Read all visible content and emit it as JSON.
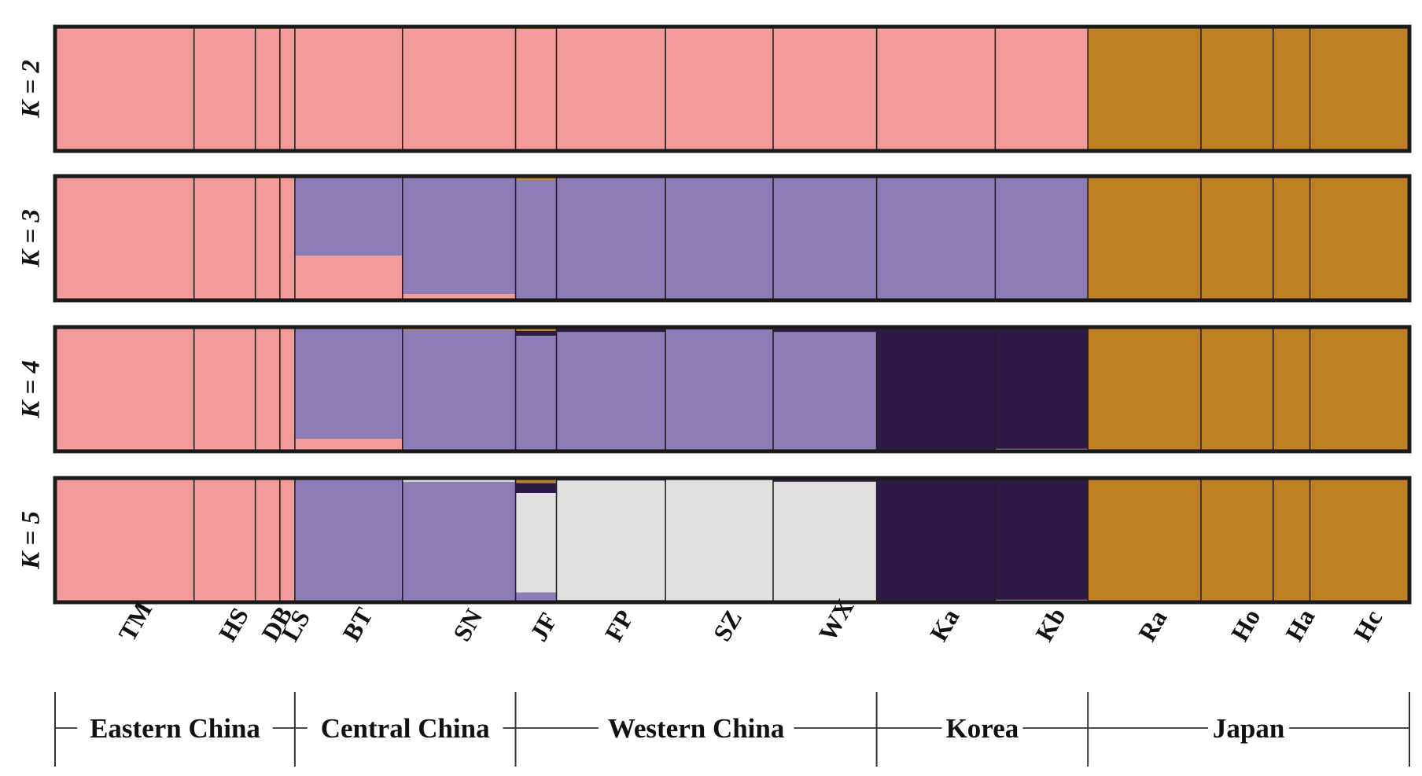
{
  "chart_data": {
    "type": "bar",
    "subtype": "stacked-100-percent admixture plot (STRUCTURE)",
    "y_range": [
      0,
      1
    ],
    "colors": {
      "pink": "#F29B9A",
      "gold": "#BF8024",
      "lavender": "#8D7CB5",
      "dark_purple": "#2F1A47",
      "light_gray": "#E1E0DF"
    },
    "populations": [
      {
        "code": "TM",
        "share": 0.102
      },
      {
        "code": "HS",
        "share": 0.045
      },
      {
        "code": "DB",
        "share": 0.018
      },
      {
        "code": "LS",
        "share": 0.011
      },
      {
        "code": "BT",
        "share": 0.079
      },
      {
        "code": "SN",
        "share": 0.083
      },
      {
        "code": "JF",
        "share": 0.03
      },
      {
        "code": "FP",
        "share": 0.08
      },
      {
        "code": "SZ",
        "share": 0.079
      },
      {
        "code": "WX",
        "share": 0.076
      },
      {
        "code": "Ka",
        "share": 0.087
      },
      {
        "code": "Kb",
        "share": 0.068
      },
      {
        "code": "Ra",
        "share": 0.083
      },
      {
        "code": "Ho",
        "share": 0.053
      },
      {
        "code": "Ha",
        "share": 0.027
      },
      {
        "code": "Hc",
        "share": 0.073
      }
    ],
    "panels": [
      {
        "k_label": "K = 2",
        "components": {
          "TM": {
            "pink": 0.99,
            "gold": 0.01
          },
          "HS": {
            "pink": 0.99,
            "gold": 0.01
          },
          "DB": {
            "pink": 0.98,
            "gold": 0.02
          },
          "LS": {
            "pink": 1.0
          },
          "BT": {
            "pink": 1.0
          },
          "SN": {
            "pink": 0.99,
            "gold": 0.01
          },
          "JF": {
            "pink": 0.98,
            "gold": 0.02
          },
          "FP": {
            "pink": 0.99,
            "gold": 0.01
          },
          "SZ": {
            "pink": 1.0
          },
          "WX": {
            "pink": 1.0
          },
          "Ka": {
            "pink": 1.0
          },
          "Kb": {
            "pink": 1.0
          },
          "Ra": {
            "gold": 1.0
          },
          "Ho": {
            "gold": 0.99,
            "pink": 0.01
          },
          "Ha": {
            "gold": 1.0
          },
          "Hc": {
            "gold": 1.0
          }
        }
      },
      {
        "k_label": "K = 3",
        "components": {
          "TM": {
            "pink": 0.99,
            "gold": 0.01
          },
          "HS": {
            "pink": 0.99,
            "gold": 0.01
          },
          "DB": {
            "pink": 0.98,
            "gold": 0.02
          },
          "LS": {
            "pink": 1.0
          },
          "BT": {
            "pink": 0.36,
            "lavender": 0.64
          },
          "SN": {
            "pink": 0.05,
            "lavender": 0.95
          },
          "JF": {
            "lavender": 0.97,
            "gold": 0.03
          },
          "FP": {
            "lavender": 0.99,
            "gold": 0.01
          },
          "SZ": {
            "lavender": 1.0
          },
          "WX": {
            "lavender": 1.0
          },
          "Ka": {
            "lavender": 1.0
          },
          "Kb": {
            "lavender": 1.0
          },
          "Ra": {
            "gold": 1.0
          },
          "Ho": {
            "gold": 0.99,
            "lavender": 0.01
          },
          "Ha": {
            "gold": 1.0
          },
          "Hc": {
            "gold": 1.0
          }
        }
      },
      {
        "k_label": "K = 4",
        "components": {
          "TM": {
            "pink": 1.0
          },
          "HS": {
            "pink": 1.0
          },
          "DB": {
            "pink": 1.0
          },
          "LS": {
            "pink": 1.0
          },
          "BT": {
            "lavender": 0.9,
            "pink": 0.1
          },
          "SN": {
            "lavender": 0.98,
            "gold": 0.02
          },
          "JF": {
            "lavender": 0.93,
            "dark_purple": 0.04,
            "gold": 0.03
          },
          "FP": {
            "lavender": 0.96,
            "dark_purple": 0.03,
            "gold": 0.01
          },
          "SZ": {
            "lavender": 0.98,
            "dark_purple": 0.02
          },
          "WX": {
            "lavender": 0.96,
            "dark_purple": 0.04
          },
          "Ka": {
            "dark_purple": 1.0
          },
          "Kb": {
            "dark_purple": 0.97,
            "pink": 0.02,
            "gold": 0.01
          },
          "Ra": {
            "gold": 1.0
          },
          "Ho": {
            "gold": 0.99,
            "lavender": 0.01
          },
          "Ha": {
            "gold": 1.0
          },
          "Hc": {
            "gold": 1.0
          }
        }
      },
      {
        "k_label": "K = 5",
        "components": {
          "TM": {
            "pink": 1.0
          },
          "HS": {
            "pink": 1.0
          },
          "DB": {
            "pink": 1.0
          },
          "LS": {
            "pink": 1.0
          },
          "BT": {
            "lavender": 1.0
          },
          "SN": {
            "lavender": 0.97,
            "light_gray": 0.02,
            "dark_purple": 0.01
          },
          "JF": {
            "light_gray": 0.8,
            "dark_purple": 0.08,
            "lavender": 0.08,
            "gold": 0.04
          },
          "FP": {
            "light_gray": 0.96,
            "dark_purple": 0.02,
            "lavender": 0.02
          },
          "SZ": {
            "light_gray": 1.0
          },
          "WX": {
            "light_gray": 0.97,
            "dark_purple": 0.03
          },
          "Ka": {
            "dark_purple": 1.0
          },
          "Kb": {
            "dark_purple": 0.97,
            "pink": 0.02,
            "gold": 0.01
          },
          "Ra": {
            "gold": 1.0
          },
          "Ho": {
            "gold": 0.99,
            "lavender": 0.01
          },
          "Ha": {
            "gold": 1.0
          },
          "Hc": {
            "gold": 1.0
          }
        }
      }
    ],
    "regions": [
      {
        "name": "Eastern China",
        "populations": [
          "TM",
          "HS",
          "DB",
          "LS"
        ]
      },
      {
        "name": "Central China",
        "populations": [
          "BT",
          "SN"
        ]
      },
      {
        "name": "Western China",
        "populations": [
          "JF",
          "FP",
          "SZ",
          "WX"
        ]
      },
      {
        "name": "Korea",
        "populations": [
          "Ka",
          "Kb"
        ]
      },
      {
        "name": "Japan",
        "populations": [
          "Ra",
          "Ho",
          "Ha",
          "Hc"
        ]
      }
    ]
  }
}
